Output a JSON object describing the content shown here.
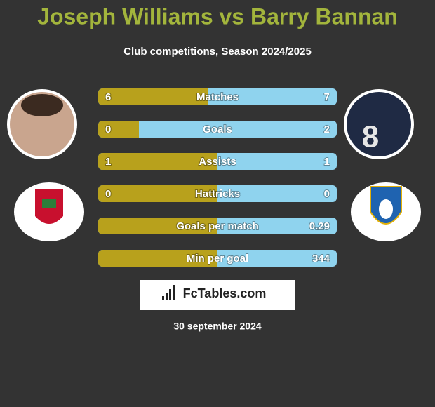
{
  "header": {
    "title": "Joseph Williams vs Barry Bannan",
    "subtitle": "Club competitions, Season 2024/2025"
  },
  "rows": [
    {
      "label": "Matches",
      "left": 6,
      "right": 7
    },
    {
      "label": "Goals",
      "left": 0,
      "right": 2
    },
    {
      "label": "Assists",
      "left": 1,
      "right": 1
    },
    {
      "label": "Hattricks",
      "left": 0,
      "right": 0
    },
    {
      "label": "Goals per match",
      "left": null,
      "right": 0.29
    },
    {
      "label": "Min per goal",
      "left": null,
      "right": 344
    }
  ],
  "colors": {
    "left": "#b8a11c",
    "right": "#8fd3ee"
  },
  "footer": {
    "logo": "FcTables.com",
    "date": "30 september 2024"
  }
}
